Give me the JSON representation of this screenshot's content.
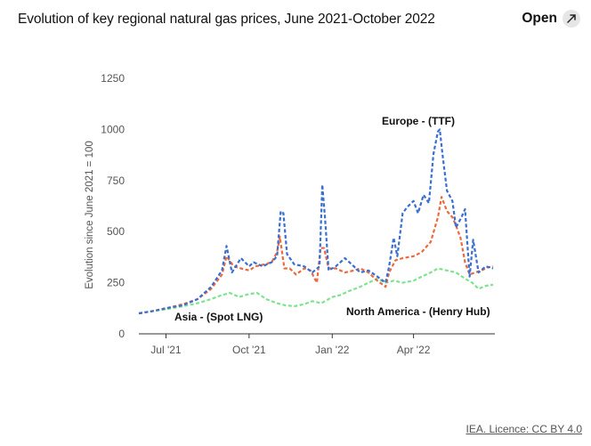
{
  "header": {
    "title": "Evolution of key regional natural gas prices, June 2021-October 2022",
    "open_label": "Open"
  },
  "credit": "IEA. Licence: CC BY 4.0",
  "colors": {
    "europe": "#3a6fd0",
    "asia": "#ec6a3f",
    "north_america": "#7ee28e",
    "axis": "#333333",
    "tick_text": "#555555"
  },
  "icons": {
    "open": "external-arrow-icon"
  },
  "chart_data": {
    "type": "line",
    "title": "Evolution of key regional natural gas prices, June 2021-October 2022",
    "ylabel": "Evolution since June 2021 = 100",
    "xlabel": "",
    "ylim": [
      0,
      1250
    ],
    "yticks": [
      0,
      250,
      500,
      750,
      1000,
      1250
    ],
    "xlim": [
      "2021-06-01",
      "2022-06-30"
    ],
    "xticks": [
      {
        "date": "2021-07-01",
        "label": "Jul '21"
      },
      {
        "date": "2021-10-01",
        "label": "Oct '21"
      },
      {
        "date": "2022-01-01",
        "label": "Jan '22"
      },
      {
        "date": "2022-04-01",
        "label": "Apr '22"
      }
    ],
    "grid": "horizontal",
    "line_style": "dashed",
    "series": [
      {
        "name": "Europe - (TTF)",
        "color": "#3a6fd0",
        "points": [
          [
            "2021-06-01",
            100
          ],
          [
            "2021-06-15",
            110
          ],
          [
            "2021-07-01",
            125
          ],
          [
            "2021-07-20",
            140
          ],
          [
            "2021-08-05",
            170
          ],
          [
            "2021-08-20",
            230
          ],
          [
            "2021-09-01",
            310
          ],
          [
            "2021-09-06",
            430
          ],
          [
            "2021-09-12",
            300
          ],
          [
            "2021-09-22",
            370
          ],
          [
            "2021-10-01",
            330
          ],
          [
            "2021-10-06",
            350
          ],
          [
            "2021-10-16",
            330
          ],
          [
            "2021-10-26",
            350
          ],
          [
            "2021-11-01",
            380
          ],
          [
            "2021-11-05",
            600
          ],
          [
            "2021-11-08",
            590
          ],
          [
            "2021-11-12",
            390
          ],
          [
            "2021-11-20",
            340
          ],
          [
            "2021-12-01",
            330
          ],
          [
            "2021-12-10",
            300
          ],
          [
            "2021-12-18",
            330
          ],
          [
            "2021-12-21",
            730
          ],
          [
            "2021-12-24",
            570
          ],
          [
            "2021-12-28",
            310
          ],
          [
            "2022-01-05",
            330
          ],
          [
            "2022-01-15",
            370
          ],
          [
            "2022-01-25",
            330
          ],
          [
            "2022-02-01",
            300
          ],
          [
            "2022-02-10",
            310
          ],
          [
            "2022-02-20",
            280
          ],
          [
            "2022-03-01",
            250
          ],
          [
            "2022-03-05",
            330
          ],
          [
            "2022-03-10",
            470
          ],
          [
            "2022-03-14",
            380
          ],
          [
            "2022-03-20",
            590
          ],
          [
            "2022-03-25",
            620
          ],
          [
            "2022-04-01",
            650
          ],
          [
            "2022-04-06",
            590
          ],
          [
            "2022-04-12",
            680
          ],
          [
            "2022-04-18",
            640
          ],
          [
            "2022-04-23",
            880
          ],
          [
            "2022-04-28",
            990
          ],
          [
            "2022-04-30",
            1000
          ],
          [
            "2022-05-03",
            880
          ],
          [
            "2022-05-08",
            700
          ],
          [
            "2022-05-14",
            650
          ],
          [
            "2022-05-18",
            520
          ],
          [
            "2022-05-24",
            570
          ],
          [
            "2022-05-28",
            610
          ],
          [
            "2022-06-02",
            280
          ],
          [
            "2022-06-06",
            460
          ],
          [
            "2022-06-12",
            300
          ],
          [
            "2022-06-20",
            330
          ],
          [
            "2022-06-28",
            320
          ]
        ]
      },
      {
        "name": "Asia - (Spot LNG)",
        "color": "#ec6a3f",
        "points": [
          [
            "2021-06-01",
            100
          ],
          [
            "2021-06-15",
            110
          ],
          [
            "2021-07-01",
            125
          ],
          [
            "2021-07-20",
            145
          ],
          [
            "2021-08-05",
            170
          ],
          [
            "2021-08-20",
            220
          ],
          [
            "2021-09-01",
            290
          ],
          [
            "2021-09-06",
            380
          ],
          [
            "2021-09-14",
            330
          ],
          [
            "2021-09-22",
            320
          ],
          [
            "2021-10-01",
            310
          ],
          [
            "2021-10-08",
            330
          ],
          [
            "2021-10-18",
            340
          ],
          [
            "2021-10-26",
            350
          ],
          [
            "2021-11-01",
            400
          ],
          [
            "2021-11-04",
            475
          ],
          [
            "2021-11-09",
            320
          ],
          [
            "2021-11-15",
            320
          ],
          [
            "2021-11-22",
            290
          ],
          [
            "2021-12-01",
            320
          ],
          [
            "2021-12-08",
            310
          ],
          [
            "2021-12-15",
            250
          ],
          [
            "2021-12-19",
            420
          ],
          [
            "2021-12-23",
            420
          ],
          [
            "2021-12-28",
            320
          ],
          [
            "2022-01-05",
            320
          ],
          [
            "2022-01-15",
            300
          ],
          [
            "2022-01-25",
            310
          ],
          [
            "2022-02-01",
            320
          ],
          [
            "2022-02-10",
            300
          ],
          [
            "2022-02-20",
            260
          ],
          [
            "2022-03-01",
            230
          ],
          [
            "2022-03-05",
            300
          ],
          [
            "2022-03-12",
            360
          ],
          [
            "2022-03-20",
            370
          ],
          [
            "2022-04-01",
            380
          ],
          [
            "2022-04-10",
            400
          ],
          [
            "2022-04-20",
            450
          ],
          [
            "2022-04-28",
            570
          ],
          [
            "2022-05-02",
            670
          ],
          [
            "2022-05-08",
            600
          ],
          [
            "2022-05-14",
            570
          ],
          [
            "2022-05-18",
            530
          ],
          [
            "2022-05-23",
            470
          ],
          [
            "2022-05-28",
            350
          ],
          [
            "2022-06-02",
            290
          ],
          [
            "2022-06-08",
            300
          ],
          [
            "2022-06-15",
            310
          ],
          [
            "2022-06-22",
            325
          ],
          [
            "2022-06-28",
            330
          ]
        ]
      },
      {
        "name": "North America - (Henry Hub)",
        "color": "#7ee28e",
        "points": [
          [
            "2021-06-01",
            100
          ],
          [
            "2021-06-15",
            110
          ],
          [
            "2021-07-01",
            120
          ],
          [
            "2021-07-20",
            135
          ],
          [
            "2021-08-05",
            150
          ],
          [
            "2021-08-20",
            170
          ],
          [
            "2021-09-01",
            190
          ],
          [
            "2021-09-10",
            200
          ],
          [
            "2021-09-20",
            180
          ],
          [
            "2021-10-01",
            195
          ],
          [
            "2021-10-10",
            200
          ],
          [
            "2021-10-20",
            170
          ],
          [
            "2021-11-01",
            150
          ],
          [
            "2021-11-10",
            140
          ],
          [
            "2021-11-20",
            135
          ],
          [
            "2021-12-01",
            145
          ],
          [
            "2021-12-10",
            160
          ],
          [
            "2021-12-20",
            150
          ],
          [
            "2022-01-01",
            180
          ],
          [
            "2022-01-10",
            190
          ],
          [
            "2022-01-20",
            210
          ],
          [
            "2022-02-01",
            230
          ],
          [
            "2022-02-10",
            250
          ],
          [
            "2022-02-20",
            270
          ],
          [
            "2022-03-01",
            250
          ],
          [
            "2022-03-10",
            260
          ],
          [
            "2022-03-20",
            250
          ],
          [
            "2022-04-01",
            260
          ],
          [
            "2022-04-10",
            280
          ],
          [
            "2022-04-20",
            300
          ],
          [
            "2022-04-28",
            320
          ],
          [
            "2022-05-08",
            310
          ],
          [
            "2022-05-18",
            300
          ],
          [
            "2022-05-28",
            270
          ],
          [
            "2022-06-05",
            250
          ],
          [
            "2022-06-12",
            220
          ],
          [
            "2022-06-20",
            235
          ],
          [
            "2022-06-28",
            240
          ]
        ]
      }
    ],
    "annotations": [
      {
        "text": "Europe - (TTF)",
        "series": "Europe - (TTF)"
      },
      {
        "text": "Asia - (Spot LNG)",
        "series": "Asia - (Spot LNG)"
      },
      {
        "text": "North America - (Henry Hub)",
        "series": "North America - (Henry Hub)"
      }
    ]
  }
}
